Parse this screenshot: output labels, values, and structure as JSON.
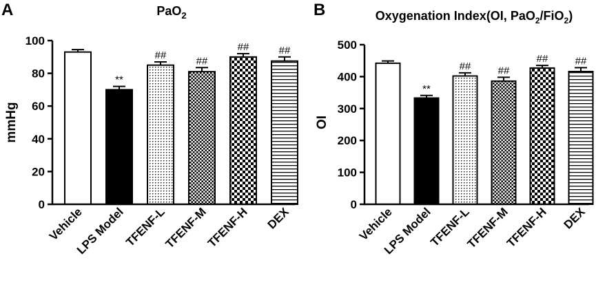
{
  "chart_data": [
    {
      "type": "bar",
      "panel": "A",
      "title": "PaO",
      "title_sub": "2",
      "xlabel": "",
      "ylabel": "mmHg",
      "ylim": [
        0,
        100
      ],
      "yticks": [
        0,
        20,
        40,
        60,
        80,
        100
      ],
      "categories": [
        "Vehicle",
        "LPS Model",
        "TFENF-L",
        "TFENF-M",
        "TFENF-H",
        "DEX"
      ],
      "values": [
        93,
        70,
        85,
        81,
        90,
        87.5
      ],
      "errors": [
        1.5,
        2,
        2,
        2.5,
        2,
        2.5
      ],
      "annotations": [
        "",
        "**",
        "##",
        "##",
        "##",
        "##"
      ],
      "patterns": [
        "white",
        "black",
        "dots",
        "checker-fine",
        "checker-coarse",
        "hlines"
      ]
    },
    {
      "type": "bar",
      "panel": "B",
      "title": "Oxygenation Index(OI, PaO",
      "title_sub1": "2",
      "title_mid": "/FiO",
      "title_sub2": "2",
      "title_end": ")",
      "xlabel": "",
      "ylabel": "OI",
      "ylim": [
        0,
        500
      ],
      "yticks": [
        0,
        100,
        200,
        300,
        400,
        500
      ],
      "categories": [
        "Vehicle",
        "LPS Model",
        "TFENF-L",
        "TFENF-M",
        "TFENF-H",
        "DEX"
      ],
      "values": [
        442,
        333,
        402,
        386,
        427,
        416
      ],
      "errors": [
        7,
        8,
        10,
        12,
        8,
        12
      ],
      "annotations": [
        "",
        "**",
        "##",
        "##",
        "##",
        "##"
      ],
      "patterns": [
        "white",
        "black",
        "dots",
        "checker-fine",
        "checker-coarse",
        "hlines"
      ]
    }
  ]
}
